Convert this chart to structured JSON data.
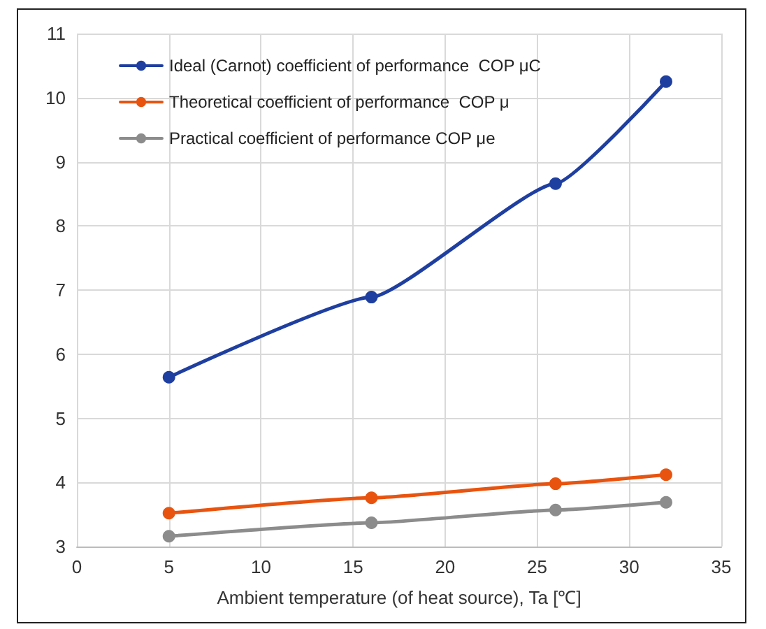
{
  "chart_data": {
    "type": "line",
    "xlabel": "Ambient temperature (of heat source), Ta [℃]",
    "x": [
      5,
      16,
      26,
      32
    ],
    "series": [
      {
        "name": "Ideal (Carnot) coefficient of performance  COP μC",
        "color": "#1f3fa0",
        "values": [
          5.64,
          6.89,
          8.66,
          10.25
        ]
      },
      {
        "name": "Theoretical coefficient of performance  COP μ",
        "color": "#e8540f",
        "values": [
          3.52,
          3.76,
          3.98,
          4.12
        ]
      },
      {
        "name": "Practical coefficient of performance COP μe",
        "color": "#8c8c8c",
        "values": [
          3.16,
          3.37,
          3.57,
          3.69
        ]
      }
    ],
    "xlim": [
      0,
      35
    ],
    "xticks": [
      0,
      5,
      10,
      15,
      20,
      25,
      30,
      35
    ],
    "ylim": [
      3,
      11
    ],
    "yticks": [
      3,
      4,
      5,
      6,
      7,
      8,
      9,
      10,
      11
    ],
    "grid": true,
    "legend": "top left",
    "marker": "circle"
  }
}
